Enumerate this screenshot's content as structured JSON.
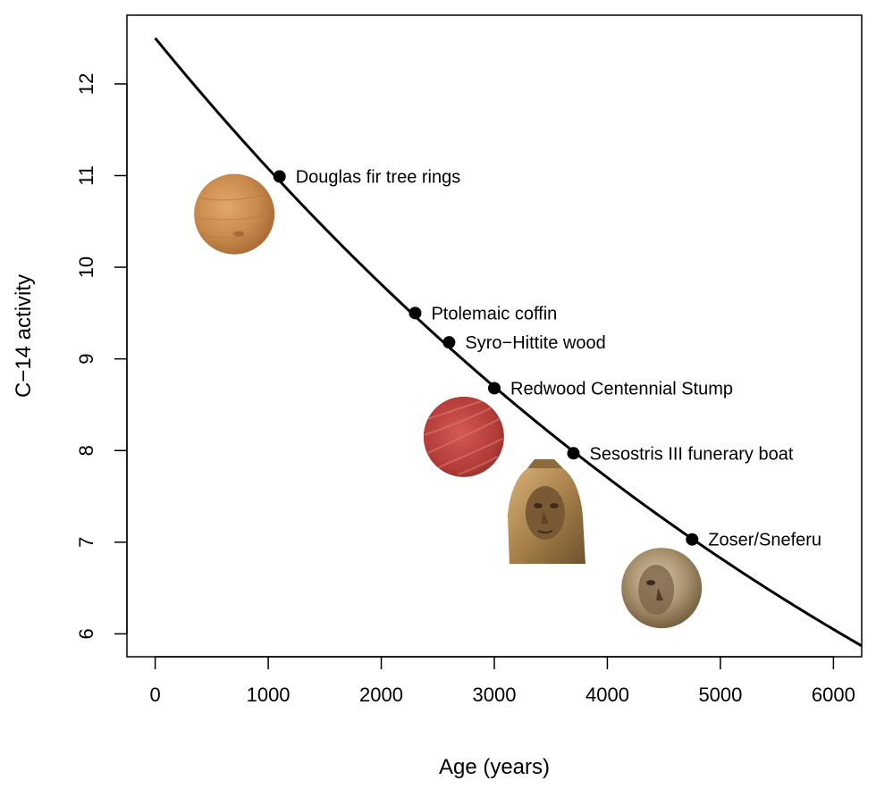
{
  "chart_data": {
    "type": "scatter",
    "xlabel": "Age (years)",
    "ylabel": "C−14 activity",
    "xlim": [
      -250,
      6250
    ],
    "ylim": [
      5.75,
      12.75
    ],
    "xticks": [
      0,
      1000,
      2000,
      3000,
      4000,
      5000,
      6000
    ],
    "yticks": [
      6,
      7,
      8,
      9,
      10,
      11,
      12
    ],
    "grid": false,
    "curve": {
      "model": "exponential_decay",
      "a0": 12.5,
      "half_life_years": 5730,
      "x_range": [
        0,
        6250
      ]
    },
    "points": [
      {
        "x": 1100,
        "y": 10.99,
        "label": "Douglas fir tree rings"
      },
      {
        "x": 2300,
        "y": 9.5,
        "label": "Ptolemaic coffin"
      },
      {
        "x": 2600,
        "y": 9.18,
        "label": "Syro−Hittite wood"
      },
      {
        "x": 3000,
        "y": 8.68,
        "label": "Redwood Centennial Stump"
      },
      {
        "x": 3700,
        "y": 7.97,
        "label": "Sesostris III funerary boat"
      },
      {
        "x": 4750,
        "y": 7.03,
        "label": "Zoser/Sneferu"
      }
    ],
    "images": [
      {
        "name": "douglas-fir-wood-image",
        "x": 700,
        "y": 10.58
      },
      {
        "name": "redwood-slice-image",
        "x": 2730,
        "y": 8.15
      },
      {
        "name": "sesostris-head-image",
        "x": 3450,
        "y": 7.3
      },
      {
        "name": "zoser-head-image",
        "x": 4480,
        "y": 6.5
      }
    ],
    "colors": {
      "curve": "#000000",
      "points": "#000000"
    }
  }
}
